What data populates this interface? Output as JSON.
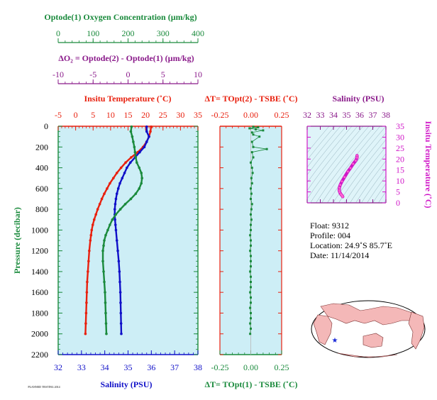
{
  "colors": {
    "green": "#1a8a3c",
    "purple": "#8a1a8a",
    "red": "#e8200e",
    "blue": "#1010c8",
    "magenta": "#d018c8",
    "panel_bg": "#cdeef6",
    "ts_bg": "#dff4f9",
    "land": "#f4b8b8",
    "ocean": "#ffffff",
    "marker": "#1a2ad8"
  },
  "titles": {
    "oxygen": "Optode(1) Oxygen Concentration  (µm/kg)",
    "delta_o2": "ΔO₂ = Optode(2) - Optode(1)   (µm/kg)",
    "temperature": "Insitu Temperature (˚C)",
    "salinity_bottom": "Salinity (PSU)",
    "pressure": "Pressure (decibar)",
    "dt_top": "ΔT= TOpt(2) - TSBE (˚C)",
    "dt_bottom": "ΔT= TOpt(1) - TSBE (˚C)",
    "ts_salinity": "Salinity (PSU)",
    "ts_temperature": "Insitu Temperature (˚C)",
    "footer_tiny": "PLANNED TESTING 2014"
  },
  "float_info": {
    "float_line": "Float:  9312",
    "profile_line": "Profile:  004",
    "location_line": "Location:  24.9˚S  85.7˚E",
    "date_line": "Date:  11/14/2014"
  },
  "chart_data": [
    {
      "type": "line",
      "panel": "main_profile",
      "pressure_axis": {
        "label": "Pressure (decibar)",
        "range": [
          2200,
          0
        ],
        "ticks": [
          0,
          200,
          400,
          600,
          800,
          1000,
          1200,
          1400,
          1600,
          1800,
          2000,
          2200
        ]
      },
      "temperature_axis": {
        "label": "Insitu Temperature (˚C)",
        "range": [
          -5,
          35
        ],
        "ticks": [
          -5,
          0,
          5,
          10,
          15,
          20,
          25,
          30,
          35
        ]
      },
      "salinity_axis": {
        "label": "Salinity (PSU)",
        "range": [
          32,
          38
        ],
        "ticks": [
          32,
          33,
          34,
          35,
          36,
          37,
          38
        ]
      },
      "oxygen_axis": {
        "label": "Optode(1) Oxygen Concentration  (µm/kg)",
        "range": [
          0,
          400
        ],
        "ticks": [
          0,
          100,
          200,
          300,
          400
        ]
      },
      "delta_o2_axis": {
        "label": "ΔO₂ = Optode(2) - Optode(1)   (µm/kg)",
        "range": [
          -10,
          10
        ],
        "ticks": [
          -10,
          -5,
          0,
          5,
          10
        ]
      },
      "series": [
        {
          "var": "temperature",
          "color": "red",
          "pressure": [
            5,
            50,
            100,
            150,
            200,
            250,
            300,
            350,
            400,
            450,
            500,
            550,
            600,
            650,
            700,
            750,
            800,
            850,
            900,
            950,
            1000,
            1050,
            1100,
            1200,
            1300,
            1400,
            1500,
            1600,
            1700,
            1800,
            1900,
            2000
          ],
          "values": [
            21.6,
            21.4,
            21.0,
            20.3,
            19.3,
            17.8,
            15.9,
            14.3,
            13.0,
            11.8,
            10.8,
            9.8,
            9.0,
            8.2,
            7.5,
            6.9,
            6.3,
            5.8,
            5.3,
            4.9,
            4.6,
            4.4,
            4.2,
            3.9,
            3.7,
            3.5,
            3.3,
            3.2,
            3.1,
            3.0,
            2.9,
            2.8
          ]
        },
        {
          "var": "salinity",
          "color": "blue",
          "pressure": [
            5,
            50,
            100,
            150,
            200,
            250,
            300,
            350,
            400,
            450,
            500,
            550,
            600,
            650,
            700,
            750,
            800,
            850,
            900,
            950,
            1000,
            1100,
            1200,
            1300,
            1400,
            1500,
            1600,
            1700,
            1800,
            1900,
            2000
          ],
          "values": [
            35.8,
            35.8,
            35.9,
            35.8,
            35.7,
            35.5,
            35.3,
            35.1,
            34.95,
            34.85,
            34.75,
            34.65,
            34.58,
            34.52,
            34.48,
            34.45,
            34.43,
            34.43,
            34.44,
            34.46,
            34.48,
            34.52,
            34.56,
            34.6,
            34.63,
            34.65,
            34.67,
            34.68,
            34.69,
            34.7,
            34.71
          ]
        },
        {
          "var": "oxygen",
          "color": "green",
          "pressure": [
            5,
            50,
            100,
            150,
            200,
            250,
            300,
            350,
            400,
            450,
            500,
            550,
            600,
            650,
            700,
            750,
            800,
            850,
            900,
            950,
            1000,
            1050,
            1100,
            1150,
            1200,
            1300,
            1400,
            1500,
            1600,
            1700,
            1800,
            1900,
            2000
          ],
          "values": [
            210,
            208,
            212,
            215,
            218,
            220,
            222,
            225,
            232,
            238,
            240,
            238,
            232,
            222,
            208,
            192,
            178,
            165,
            155,
            148,
            142,
            136,
            132,
            130,
            128,
            128,
            130,
            132,
            134,
            135,
            136,
            137,
            138
          ]
        }
      ]
    },
    {
      "type": "scatter",
      "panel": "delta_t",
      "top_axis": {
        "label": "ΔT= TOpt(2) - TSBE (˚C)",
        "range": [
          -0.25,
          0.25
        ],
        "ticks": [
          -0.25,
          0.0,
          0.25
        ]
      },
      "bottom_axis": {
        "label": "ΔT= TOpt(1) - TSBE (˚C)",
        "range": [
          -0.25,
          0.25
        ],
        "ticks": [
          -0.25,
          0.0,
          0.25
        ]
      },
      "pressure_range": [
        2200,
        0
      ],
      "series": [
        {
          "name": "",
          "color": "green",
          "pressure": [
            5,
            10,
            20,
            30,
            40,
            60,
            80,
            100,
            150,
            200,
            220,
            250,
            300,
            350,
            400,
            450,
            500,
            550,
            600,
            650,
            700,
            750,
            800,
            850,
            900,
            950,
            1000,
            1050,
            1100,
            1150,
            1200,
            1250,
            1300,
            1350,
            1400,
            1450,
            1500,
            1550,
            1600,
            1650,
            1700,
            1750,
            1800,
            1850,
            1900,
            1950,
            2000
          ],
          "values": [
            0.02,
            0.06,
            -0.01,
            0.04,
            0.1,
            0.01,
            0.02,
            0.07,
            0.01,
            0.02,
            0.13,
            0.01,
            0.02,
            0.0,
            0.01,
            0.015,
            0.005,
            0.01,
            0.0,
            0.005,
            0.0,
            0.01,
            0.005,
            0.0,
            0.005,
            0.0,
            0.0,
            -0.005,
            0.0,
            0.0,
            -0.005,
            0.0,
            0.0,
            0.0,
            -0.005,
            0.0,
            0.0,
            0.0,
            -0.005,
            0.0,
            0.0,
            -0.005,
            0.0,
            0.0,
            -0.005,
            0.0,
            -0.005
          ]
        }
      ]
    },
    {
      "type": "line",
      "panel": "ts_diagram",
      "x_axis": {
        "label": "Salinity (PSU)",
        "range": [
          32,
          38
        ],
        "ticks": [
          32,
          33,
          34,
          35,
          36,
          37,
          38
        ]
      },
      "y_axis": {
        "label": "Insitu Temperature (˚C)",
        "range": [
          0,
          35
        ],
        "ticks": [
          0,
          5,
          10,
          15,
          20,
          25,
          30,
          35
        ]
      },
      "series": [
        {
          "name": "",
          "color": "magenta",
          "x": [
            34.71,
            34.68,
            34.63,
            34.56,
            34.48,
            34.44,
            34.45,
            34.52,
            34.65,
            34.85,
            35.1,
            35.3,
            35.5,
            35.7,
            35.8,
            35.8
          ],
          "y": [
            2.8,
            3.1,
            3.5,
            4.0,
            4.9,
            5.8,
            6.9,
            8.2,
            9.8,
            11.8,
            14.3,
            15.9,
            17.8,
            19.3,
            20.6,
            21.6
          ]
        }
      ]
    }
  ]
}
